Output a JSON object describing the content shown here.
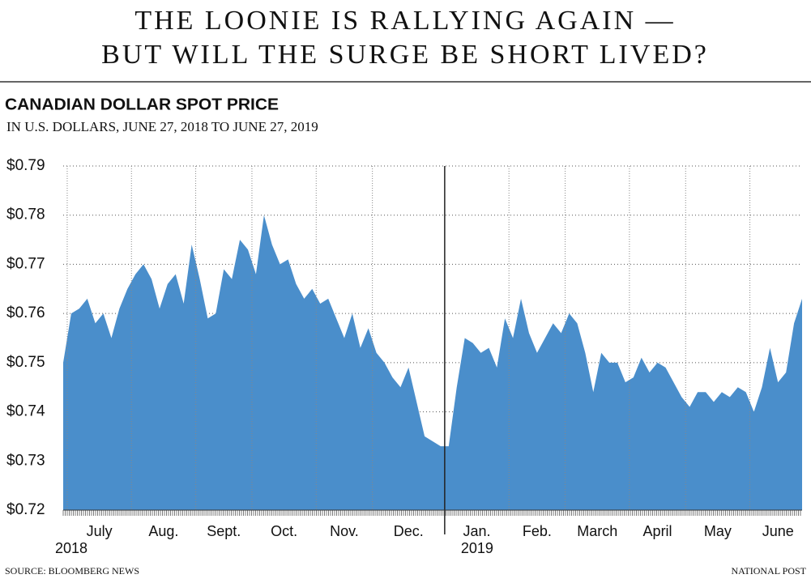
{
  "chart_data": {
    "type": "area",
    "title": [
      "THE LOONIE IS RALLYING AGAIN —",
      "BUT WILL THE SURGE BE SHORT LIVED?"
    ],
    "heading": "CANADIAN DOLLAR SPOT PRICE",
    "subtitle": "IN U.S. DOLLARS, JUNE 27, 2018 TO JUNE 27, 2019",
    "source": "SOURCE: BLOOMBERG NEWS",
    "credit": "NATIONAL POST",
    "color": "#4a8ecb",
    "grid": true,
    "year_labels": [
      "2018",
      "2019"
    ],
    "year_break": 48,
    "categories": [
      null,
      "July",
      "July",
      "July",
      "July",
      "July",
      "July",
      "July",
      "July",
      "Aug.",
      "Aug.",
      "Aug.",
      "Aug.",
      "Aug.",
      "Aug.",
      "Aug.",
      "Aug.",
      "Sept.",
      "Sept.",
      "Sept.",
      "Sept.",
      "Sept.",
      "Sept.",
      "Sept.",
      "Oct.",
      "Oct.",
      "Oct.",
      "Oct.",
      "Oct.",
      "Oct.",
      "Oct.",
      "Oct.",
      "Nov.",
      "Nov.",
      "Nov.",
      "Nov.",
      "Nov.",
      "Nov.",
      "Nov.",
      "Dec.",
      "Dec.",
      "Dec.",
      "Dec.",
      "Dec.",
      "Dec.",
      "Dec.",
      "Dec.",
      "Dec.",
      "Jan.",
      "Jan.",
      "Jan.",
      "Jan.",
      "Jan.",
      "Jan.",
      "Jan.",
      "Jan.",
      "Feb.",
      "Feb.",
      "Feb.",
      "Feb.",
      "Feb.",
      "Feb.",
      "Feb.",
      "March",
      "March",
      "March",
      "March",
      "March",
      "March",
      "March",
      "March",
      "April",
      "April",
      "April",
      "April",
      "April",
      "April",
      "April",
      "May",
      "May",
      "May",
      "May",
      "May",
      "May",
      "May",
      "May",
      "June",
      "June",
      "June",
      "June",
      "June",
      "June",
      "June"
    ],
    "values": [
      0.75,
      0.76,
      0.761,
      0.763,
      0.758,
      0.76,
      0.755,
      0.761,
      0.765,
      0.768,
      0.77,
      0.767,
      0.761,
      0.766,
      0.768,
      0.762,
      0.774,
      0.767,
      0.759,
      0.76,
      0.769,
      0.767,
      0.775,
      0.773,
      0.768,
      0.78,
      0.774,
      0.77,
      0.771,
      0.766,
      0.763,
      0.765,
      0.762,
      0.763,
      0.759,
      0.755,
      0.76,
      0.753,
      0.757,
      0.752,
      0.75,
      0.747,
      0.745,
      0.749,
      0.742,
      0.735,
      0.734,
      0.733,
      0.733,
      0.745,
      0.755,
      0.754,
      0.752,
      0.753,
      0.749,
      0.759,
      0.755,
      0.763,
      0.756,
      0.752,
      0.755,
      0.758,
      0.756,
      0.76,
      0.758,
      0.752,
      0.744,
      0.752,
      0.75,
      0.75,
      0.746,
      0.747,
      0.751,
      0.748,
      0.75,
      0.749,
      0.746,
      0.743,
      0.741,
      0.744,
      0.744,
      0.742,
      0.744,
      0.743,
      0.745,
      0.744,
      0.74,
      0.745,
      0.753,
      0.746,
      0.748,
      0.758,
      0.763
    ],
    "ylim": [
      0.72,
      0.79
    ],
    "yticks": [
      {
        "value": 0.72,
        "label": "$0.72"
      },
      {
        "value": 0.73,
        "label": "$0.73"
      },
      {
        "value": 0.74,
        "label": "$0.74"
      },
      {
        "value": 0.75,
        "label": "$0.75"
      },
      {
        "value": 0.76,
        "label": "$0.76"
      },
      {
        "value": 0.77,
        "label": "$0.77"
      },
      {
        "value": 0.78,
        "label": "$0.78"
      },
      {
        "value": 0.79,
        "label": "$0.79"
      }
    ]
  }
}
